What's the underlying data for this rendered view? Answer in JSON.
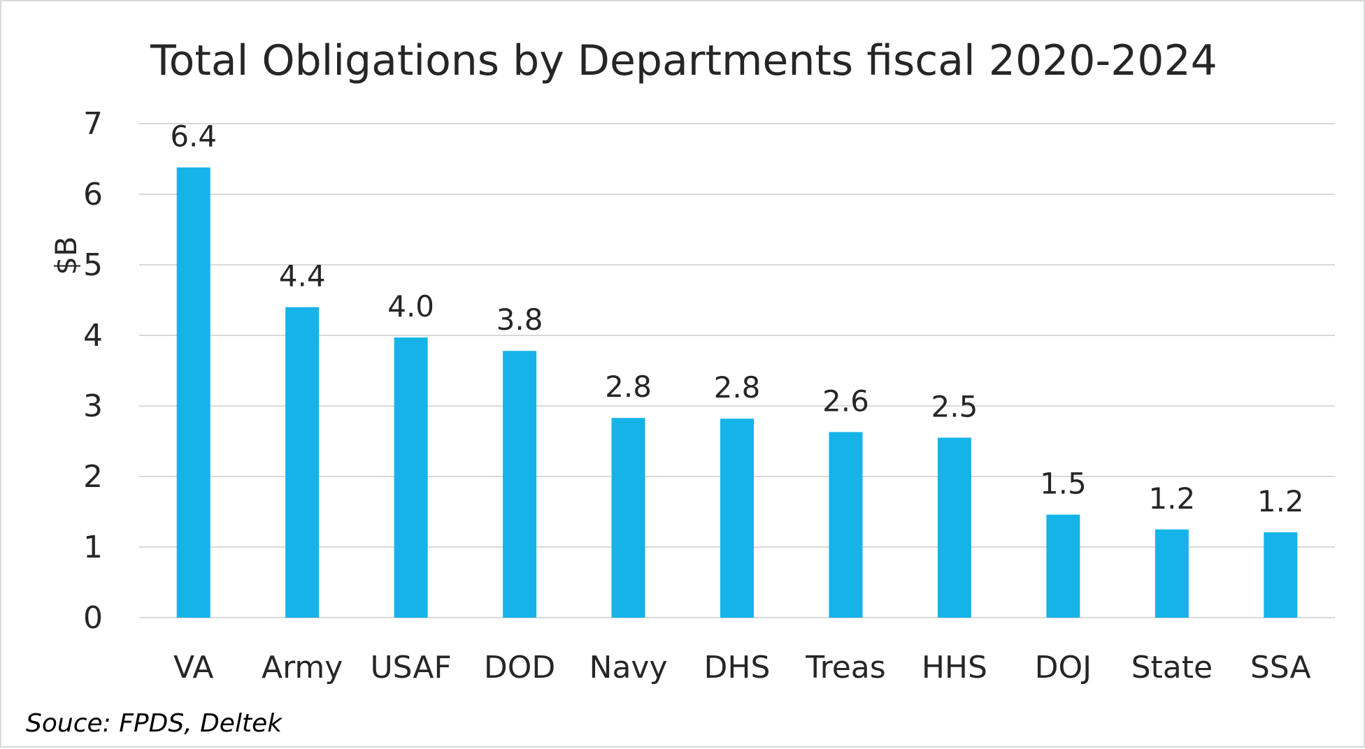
{
  "chart_data": {
    "type": "bar",
    "title": "Total Obligations by Departments fiscal 2020-2024",
    "xlabel": "",
    "ylabel": "$B",
    "categories": [
      "VA",
      "Army",
      "USAF",
      "DOD",
      "Navy",
      "DHS",
      "Treas",
      "HHS",
      "DOJ",
      "State",
      "SSA"
    ],
    "values": [
      6.38,
      4.4,
      3.97,
      3.78,
      2.83,
      2.82,
      2.63,
      2.55,
      1.46,
      1.25,
      1.21
    ],
    "data_labels": [
      "6.4",
      "4.4",
      "4.0",
      "3.8",
      "2.8",
      "2.8",
      "2.6",
      "2.5",
      "1.5",
      "1.2",
      "1.2"
    ],
    "ylim": [
      0,
      7
    ],
    "yticks": [
      "0",
      "1",
      "2",
      "3",
      "4",
      "5",
      "6",
      "7"
    ],
    "grid": true,
    "legend": "none",
    "bar_color": "#16b3e8",
    "source": "Souce: FPDS, Deltek"
  }
}
